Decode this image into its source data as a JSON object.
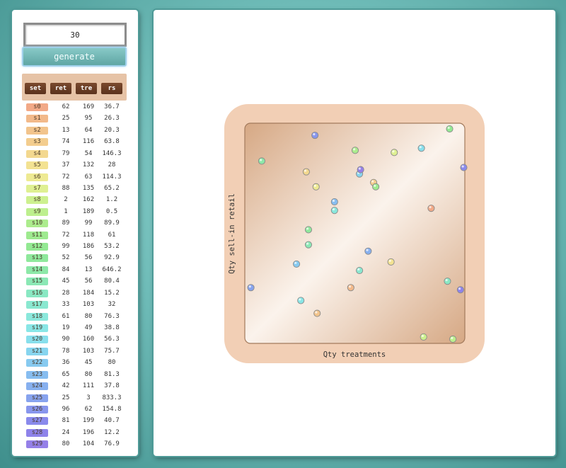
{
  "controls": {
    "count_value": "30",
    "generate_label": "generate"
  },
  "table": {
    "headers": [
      "set",
      "ret",
      "tre",
      "rs"
    ],
    "rows": [
      {
        "set": "s0",
        "ret": "62",
        "tre": "169",
        "rs": "36.7",
        "color": "#f2a987"
      },
      {
        "set": "s1",
        "ret": "25",
        "tre": "95",
        "rs": "26.3",
        "color": "#f2b98a"
      },
      {
        "set": "s2",
        "ret": "13",
        "tre": "64",
        "rs": "20.3",
        "color": "#f2c48c"
      },
      {
        "set": "s3",
        "ret": "74",
        "tre": "116",
        "rs": "63.8",
        "color": "#f3cd8e"
      },
      {
        "set": "s4",
        "ret": "79",
        "tre": "54",
        "rs": "146.3",
        "color": "#f3d88f"
      },
      {
        "set": "s5",
        "ret": "37",
        "tre": "132",
        "rs": "28",
        "color": "#f3e292"
      },
      {
        "set": "s6",
        "ret": "72",
        "tre": "63",
        "rs": "114.3",
        "color": "#eeea93"
      },
      {
        "set": "s7",
        "ret": "88",
        "tre": "135",
        "rs": "65.2",
        "color": "#dff092"
      },
      {
        "set": "s8",
        "ret": "2",
        "tre": "162",
        "rs": "1.2",
        "color": "#cdf08f"
      },
      {
        "set": "s9",
        "ret": "1",
        "tre": "189",
        "rs": "0.5",
        "color": "#bdef8e"
      },
      {
        "set": "s10",
        "ret": "89",
        "tre": "99",
        "rs": "89.9",
        "color": "#acec8d"
      },
      {
        "set": "s11",
        "ret": "72",
        "tre": "118",
        "rs": "61",
        "color": "#9eea8f"
      },
      {
        "set": "s12",
        "ret": "99",
        "tre": "186",
        "rs": "53.2",
        "color": "#93e993"
      },
      {
        "set": "s13",
        "ret": "52",
        "tre": "56",
        "rs": "92.9",
        "color": "#8fe89c"
      },
      {
        "set": "s14",
        "ret": "84",
        "tre": "13",
        "rs": "646.2",
        "color": "#8de8a8"
      },
      {
        "set": "s15",
        "ret": "45",
        "tre": "56",
        "rs": "80.4",
        "color": "#8be8b5"
      },
      {
        "set": "s16",
        "ret": "28",
        "tre": "184",
        "rs": "15.2",
        "color": "#8ae8c3"
      },
      {
        "set": "s17",
        "ret": "33",
        "tre": "103",
        "rs": "32",
        "color": "#8ae8d0"
      },
      {
        "set": "s18",
        "ret": "61",
        "tre": "80",
        "rs": "76.3",
        "color": "#8ae8dc"
      },
      {
        "set": "s19",
        "ret": "19",
        "tre": "49",
        "rs": "38.8",
        "color": "#89e6e6"
      },
      {
        "set": "s20",
        "ret": "90",
        "tre": "160",
        "rs": "56.3",
        "color": "#88dfec"
      },
      {
        "set": "s21",
        "ret": "78",
        "tre": "103",
        "rs": "75.7",
        "color": "#87d5ef"
      },
      {
        "set": "s22",
        "ret": "36",
        "tre": "45",
        "rs": "80",
        "color": "#87caf0"
      },
      {
        "set": "s23",
        "ret": "65",
        "tre": "80",
        "rs": "81.3",
        "color": "#87bdf0"
      },
      {
        "set": "s24",
        "ret": "42",
        "tre": "111",
        "rs": "37.8",
        "color": "#87b0ef"
      },
      {
        "set": "s25",
        "ret": "25",
        "tre": "3",
        "rs": "833.3",
        "color": "#87a3ee"
      },
      {
        "set": "s26",
        "ret": "96",
        "tre": "62",
        "rs": "154.8",
        "color": "#8896ed"
      },
      {
        "set": "s27",
        "ret": "81",
        "tre": "199",
        "rs": "40.7",
        "color": "#8a8aec"
      },
      {
        "set": "s28",
        "ret": "24",
        "tre": "196",
        "rs": "12.2",
        "color": "#8e83ea"
      },
      {
        "set": "s29",
        "ret": "80",
        "tre": "104",
        "rs": "76.9",
        "color": "#9580e8"
      }
    ]
  },
  "chart_data": {
    "type": "scatter",
    "xlabel": "Qty treatments",
    "ylabel": "Qty sell-in retail",
    "xlim": [
      0,
      200
    ],
    "ylim": [
      0,
      100
    ],
    "grid": false,
    "points": [
      {
        "name": "s0",
        "x": 169,
        "y": 62,
        "color": "#f2a987"
      },
      {
        "name": "s1",
        "x": 95,
        "y": 25,
        "color": "#f2b98a"
      },
      {
        "name": "s2",
        "x": 64,
        "y": 13,
        "color": "#f2c48c"
      },
      {
        "name": "s3",
        "x": 116,
        "y": 74,
        "color": "#f3cd8e"
      },
      {
        "name": "s4",
        "x": 54,
        "y": 79,
        "color": "#f3d88f"
      },
      {
        "name": "s5",
        "x": 132,
        "y": 37,
        "color": "#f3e292"
      },
      {
        "name": "s6",
        "x": 63,
        "y": 72,
        "color": "#eeea93"
      },
      {
        "name": "s7",
        "x": 135,
        "y": 88,
        "color": "#dff092"
      },
      {
        "name": "s8",
        "x": 162,
        "y": 2,
        "color": "#cdf08f"
      },
      {
        "name": "s9",
        "x": 189,
        "y": 1,
        "color": "#bdef8e"
      },
      {
        "name": "s10",
        "x": 99,
        "y": 89,
        "color": "#acec8d"
      },
      {
        "name": "s11",
        "x": 118,
        "y": 72,
        "color": "#9eea8f"
      },
      {
        "name": "s12",
        "x": 186,
        "y": 99,
        "color": "#93e993"
      },
      {
        "name": "s13",
        "x": 56,
        "y": 52,
        "color": "#8fe89c"
      },
      {
        "name": "s14",
        "x": 13,
        "y": 84,
        "color": "#8de8a8"
      },
      {
        "name": "s15",
        "x": 56,
        "y": 45,
        "color": "#8be8b5"
      },
      {
        "name": "s16",
        "x": 184,
        "y": 28,
        "color": "#8ae8c3"
      },
      {
        "name": "s17",
        "x": 103,
        "y": 33,
        "color": "#8ae8d0"
      },
      {
        "name": "s18",
        "x": 80,
        "y": 61,
        "color": "#8ae8dc"
      },
      {
        "name": "s19",
        "x": 49,
        "y": 19,
        "color": "#89e6e6"
      },
      {
        "name": "s20",
        "x": 160,
        "y": 90,
        "color": "#88dfec"
      },
      {
        "name": "s21",
        "x": 103,
        "y": 78,
        "color": "#87d5ef"
      },
      {
        "name": "s22",
        "x": 45,
        "y": 36,
        "color": "#87caf0"
      },
      {
        "name": "s23",
        "x": 80,
        "y": 65,
        "color": "#87bdf0"
      },
      {
        "name": "s24",
        "x": 111,
        "y": 42,
        "color": "#87b0ef"
      },
      {
        "name": "s25",
        "x": 3,
        "y": 25,
        "color": "#87a3ee"
      },
      {
        "name": "s26",
        "x": 62,
        "y": 96,
        "color": "#8896ed"
      },
      {
        "name": "s27",
        "x": 199,
        "y": 81,
        "color": "#8a8aec"
      },
      {
        "name": "s28",
        "x": 196,
        "y": 24,
        "color": "#8e83ea"
      },
      {
        "name": "s29",
        "x": 104,
        "y": 80,
        "color": "#9580e8"
      }
    ]
  }
}
